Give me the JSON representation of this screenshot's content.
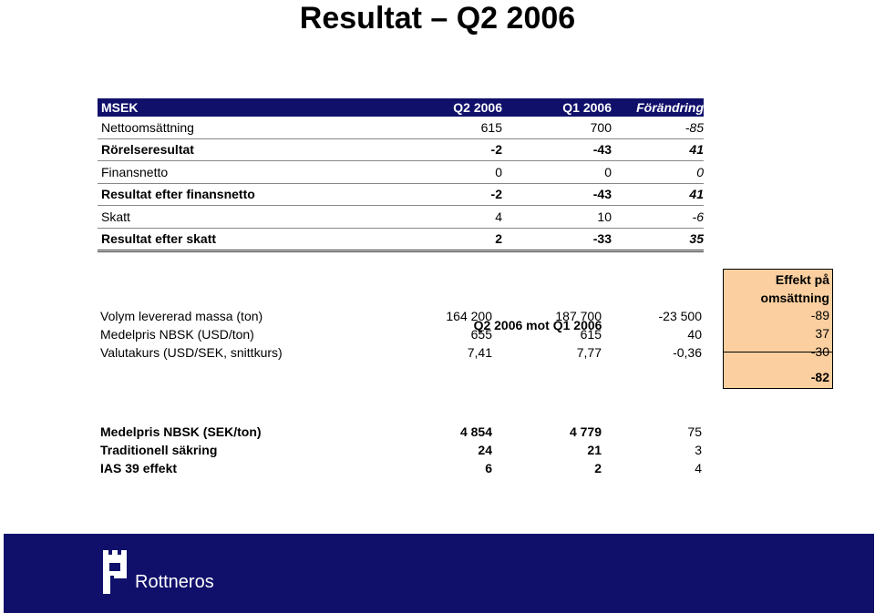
{
  "titles": {
    "line1": "Resultat – Q2 2006",
    "line2": "Q2 2006 mot Q1 2006"
  },
  "table1": {
    "headers": {
      "label": "MSEK",
      "q2": "Q2 2006",
      "q1": "Q1 2006",
      "change": "Förändring"
    },
    "rows": [
      {
        "label": "Nettoomsättning",
        "q2": "615",
        "q1": "700",
        "change": "-85"
      },
      {
        "label": "Rörelseresultat",
        "q2": "-2",
        "q1": "-43",
        "change": "41"
      },
      {
        "label": "Finansnetto",
        "q2": "0",
        "q1": "0",
        "change": "0"
      },
      {
        "label": "Resultat efter finansnetto",
        "q2": "-2",
        "q1": "-43",
        "change": "41"
      },
      {
        "label": "Skatt",
        "q2": "4",
        "q1": "10",
        "change": "-6"
      },
      {
        "label": "Resultat efter skatt",
        "q2": "2",
        "q1": "-33",
        "change": "35"
      }
    ]
  },
  "table2": {
    "effect_header": [
      "Effekt på",
      "omsättning"
    ],
    "rows": [
      {
        "label": "Volym levererad massa (ton)",
        "q2": "164 200",
        "q1": "187 700",
        "change": "-23 500",
        "effect": "-89"
      },
      {
        "label": "Medelpris NBSK (USD/ton)",
        "q2": "655",
        "q1": "615",
        "change": "40",
        "effect": "37"
      },
      {
        "label": "Valutakurs (USD/SEK, snittkurs)",
        "q2": "7,41",
        "q1": "7,77",
        "change": "-0,36",
        "effect": "-30"
      }
    ],
    "effect_total": "-82"
  },
  "table3": {
    "rows": [
      {
        "label": "Medelpris NBSK (SEK/ton)",
        "q2": "4 854",
        "q1": "4 779",
        "change": "75"
      },
      {
        "label": "Traditionell säkring",
        "q2": "24",
        "q1": "21",
        "change": "3"
      },
      {
        "label": "IAS 39 effekt",
        "q2": "6",
        "q1": "2",
        "change": "4"
      }
    ]
  },
  "footer": {
    "brand": "Rottneros"
  },
  "colors": {
    "navy": "#10106b",
    "effect_bg": "#fbcf9f"
  }
}
